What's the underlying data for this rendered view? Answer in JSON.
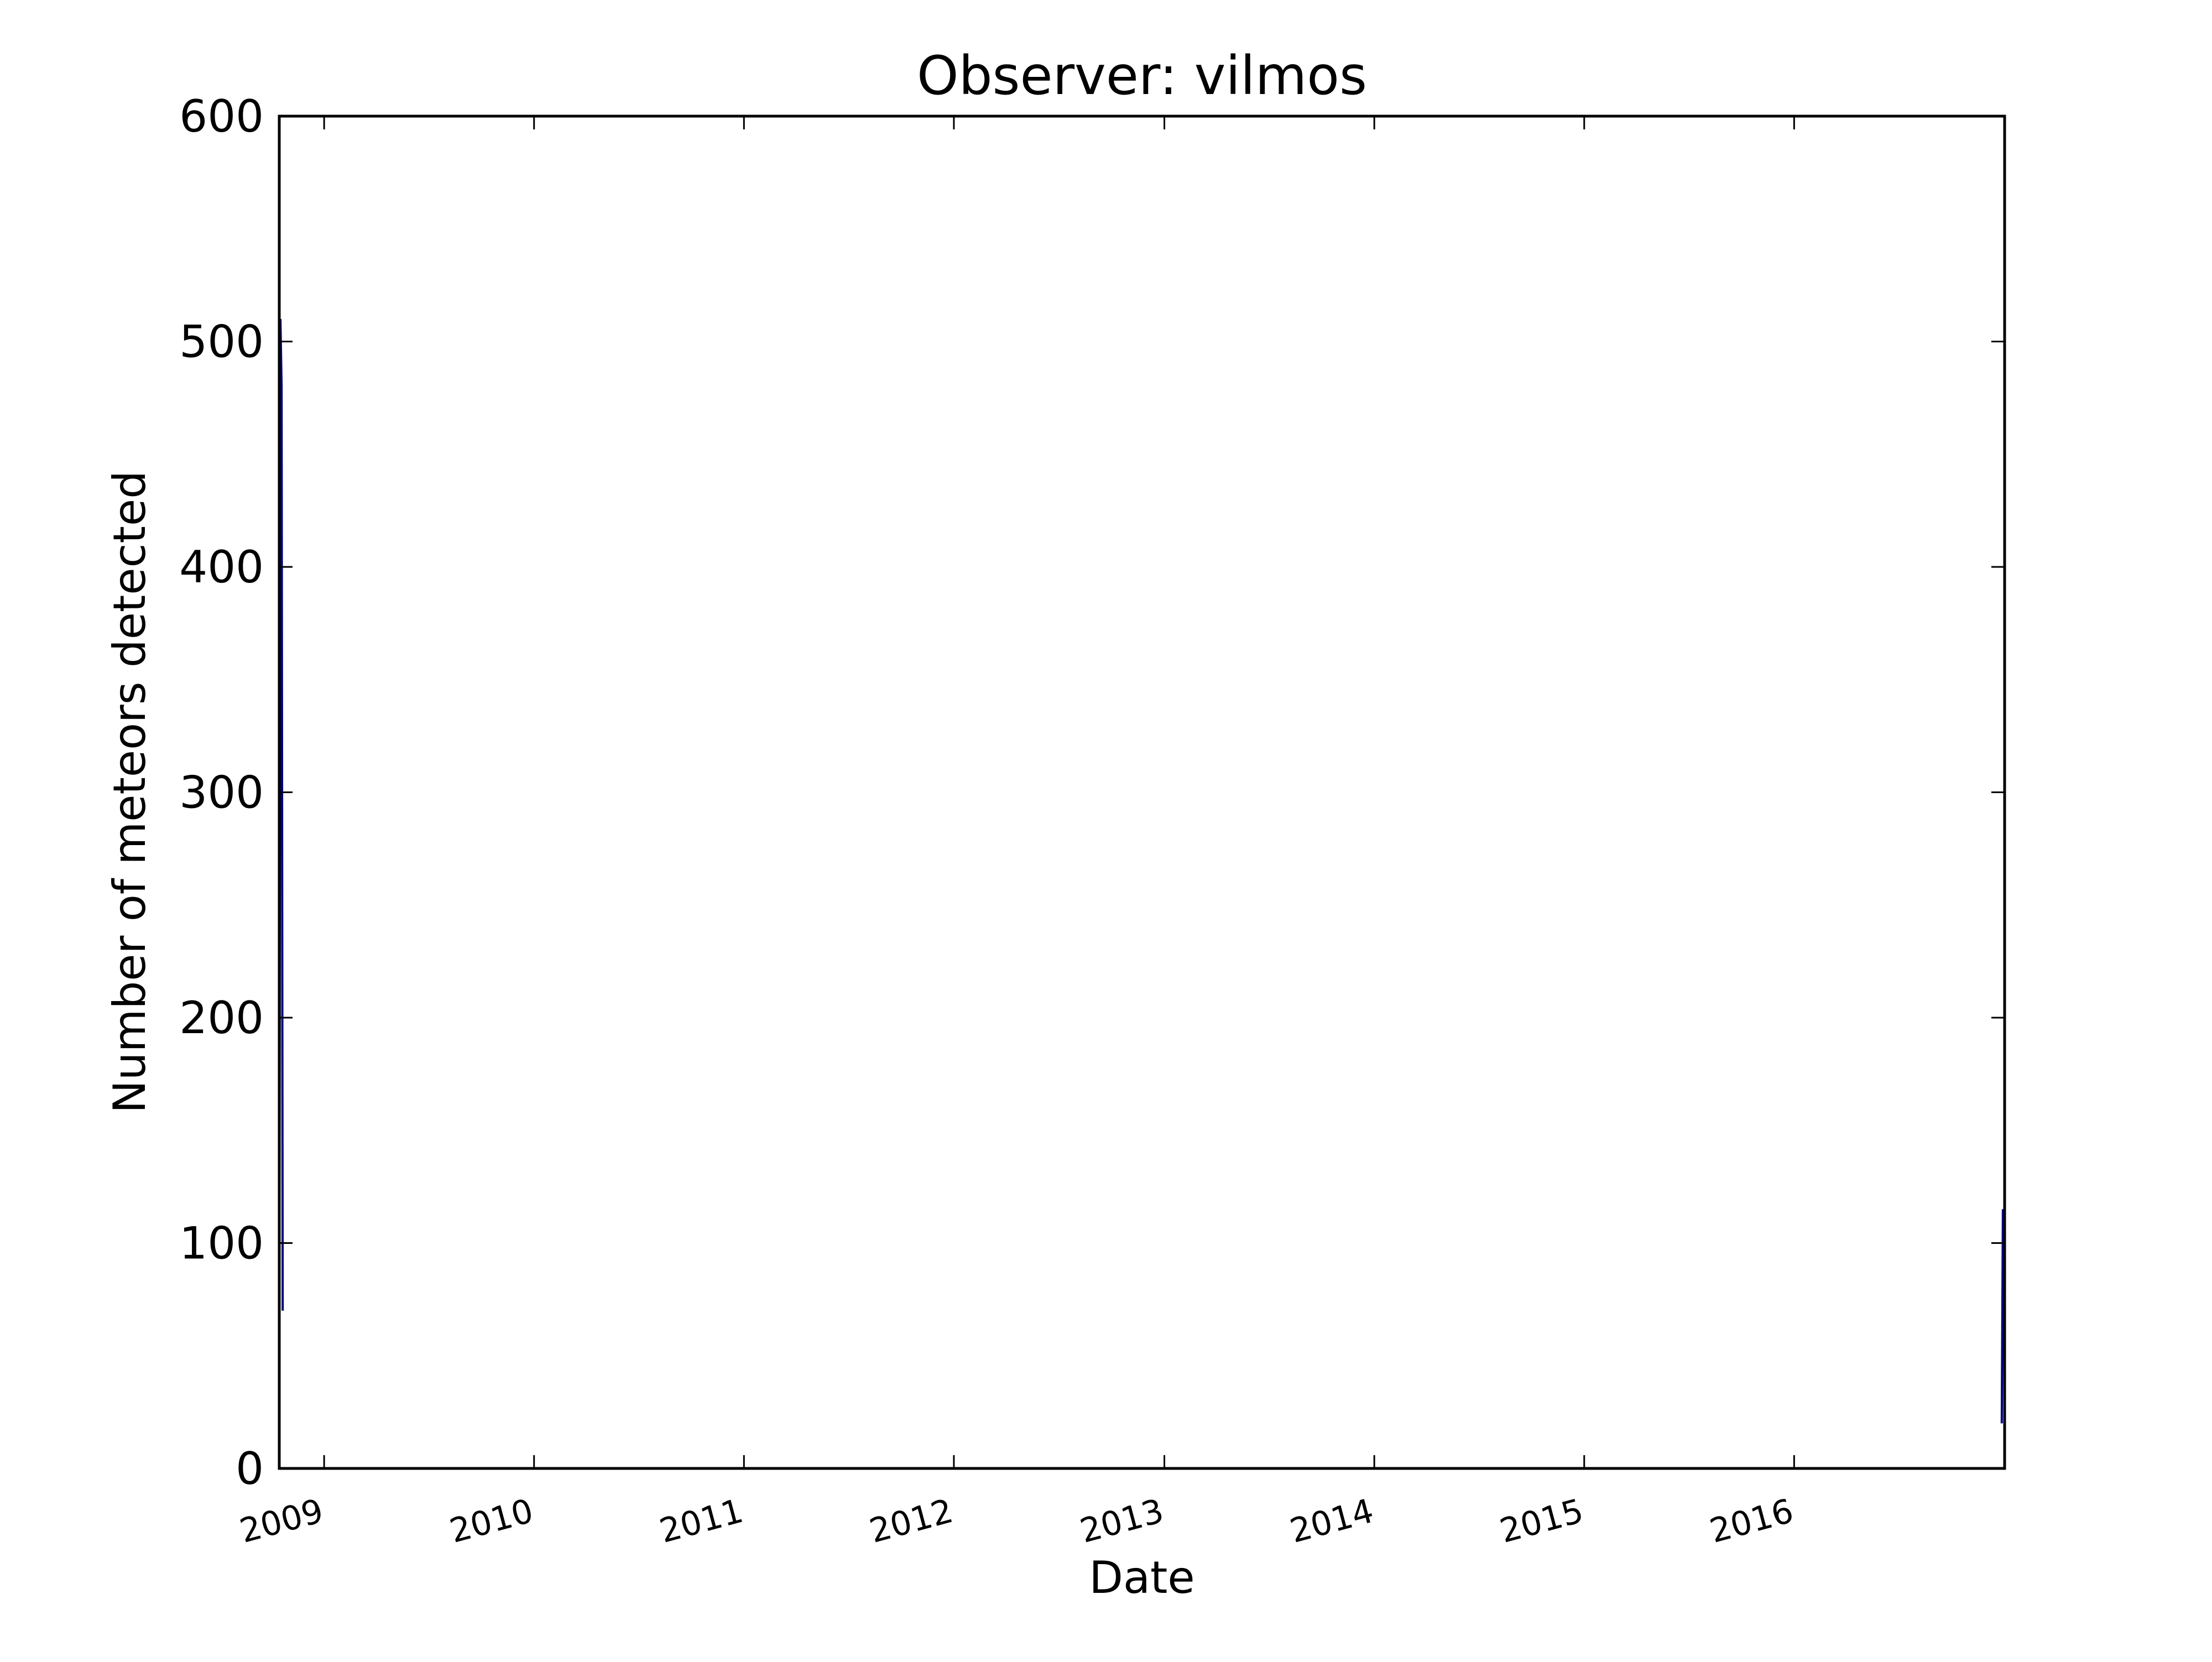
{
  "chart_data": {
    "type": "line",
    "title": "Observer: vilmos",
    "xlabel": "Date",
    "ylabel": "Number of meteors detected",
    "xlim": [
      "2008-10-15",
      "2017-01-01"
    ],
    "ylim": [
      0,
      600
    ],
    "x_ticks": [
      "2009",
      "2010",
      "2011",
      "2012",
      "2013",
      "2014",
      "2015",
      "2016"
    ],
    "y_ticks": [
      0,
      100,
      200,
      300,
      400,
      500,
      600
    ],
    "grid": false,
    "line_color": "#000080",
    "series": [
      {
        "x": [
          "2008-10-15",
          "2008-10-17",
          "2008-10-19",
          "2008-10-21"
        ],
        "values": [
          0,
          510,
          480,
          70
        ]
      },
      {
        "x": [
          "2016-12-27",
          "2016-12-29",
          "2016-12-31"
        ],
        "values": [
          20,
          115,
          60
        ]
      }
    ]
  }
}
